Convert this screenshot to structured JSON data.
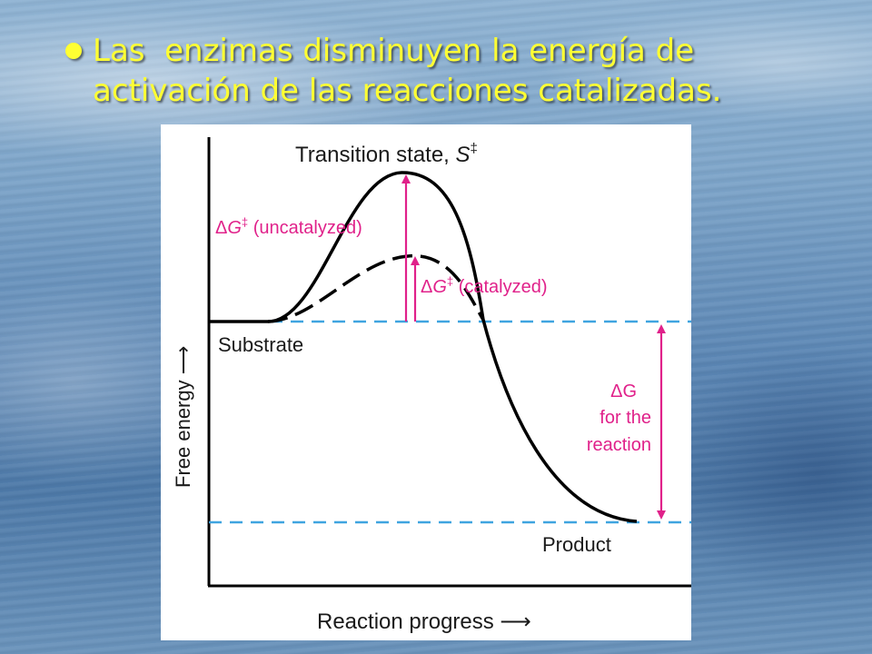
{
  "slide": {
    "bullet_text": "Las  enzimas disminuyen la energía de activación de las reacciones catalizadas."
  },
  "diagram": {
    "transition_state_prefix": "Transition state, ",
    "transition_state_symbol": "S",
    "double_dagger": "‡",
    "delta": "Δ",
    "g": "G",
    "uncatalyzed_suffix": " (uncatalyzed)",
    "catalyzed_suffix": " (catalyzed)",
    "substrate_label": "Substrate",
    "product_label": "Product",
    "dg_reaction_line1": "ΔG",
    "dg_reaction_line2": "for the",
    "dg_reaction_line3": "reaction",
    "y_axis_label": "Free energy ⟶",
    "x_axis_label": "Reaction progress ⟶"
  },
  "colors": {
    "bullet_text": "#ffff33",
    "curve": "#000000",
    "dashed_levels": "#3fa4e0",
    "annotation": "#e0218a"
  }
}
